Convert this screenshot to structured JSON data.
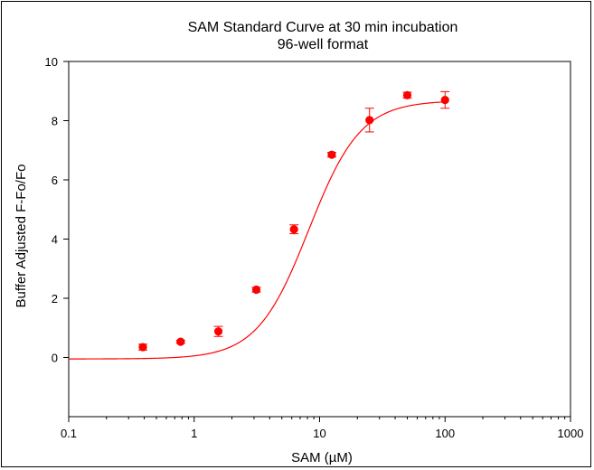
{
  "chart_data": {
    "type": "scatter",
    "title": "SAM Standard Curve at 30 min incubation",
    "subtitle": "96-well format",
    "xlabel": "SAM (µM)",
    "ylabel": "Buffer Adjusted F-Fo/Fo",
    "x_scale": "log",
    "xlim": [
      0.1,
      1000
    ],
    "ylim": [
      -2,
      10
    ],
    "x_ticks": [
      0.1,
      1,
      10,
      100,
      1000
    ],
    "x_tick_labels": [
      "0.1",
      "1",
      "10",
      "100",
      "1000"
    ],
    "y_ticks": [
      0,
      2,
      4,
      6,
      8,
      10
    ],
    "y_tick_labels": [
      "0",
      "2",
      "4",
      "6",
      "8",
      "10"
    ],
    "grid": false,
    "color": "#ff0000",
    "points": [
      {
        "x": 0.39,
        "y": 0.35,
        "err": 0.1
      },
      {
        "x": 0.78,
        "y": 0.53,
        "err": 0.05
      },
      {
        "x": 1.56,
        "y": 0.88,
        "err": 0.17
      },
      {
        "x": 3.13,
        "y": 2.29,
        "err": 0.08
      },
      {
        "x": 6.25,
        "y": 4.33,
        "err": 0.15
      },
      {
        "x": 12.5,
        "y": 6.85,
        "err": 0.08
      },
      {
        "x": 25,
        "y": 8.02,
        "err": 0.4
      },
      {
        "x": 50,
        "y": 8.86,
        "err": 0.1
      },
      {
        "x": 100,
        "y": 8.7,
        "err": 0.28
      }
    ],
    "fit": {
      "model": "4-parameter logistic",
      "bottom": -0.05,
      "top": 8.68,
      "ec50": 8.2,
      "hill": 2.1,
      "x_range": [
        0.1,
        100
      ]
    }
  }
}
